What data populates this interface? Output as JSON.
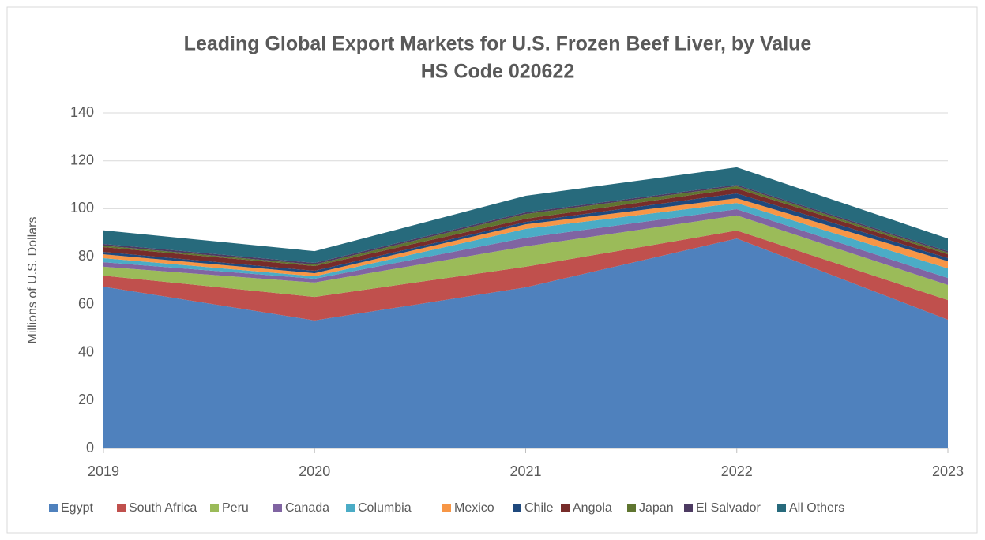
{
  "chart_data": {
    "type": "stacked-area",
    "title": "Leading Global Export Markets for U.S. Frozen Beef Liver, by Value",
    "subtitle": "HS Code 020622",
    "y_label": "Millions of U.S. Dollars",
    "categories": [
      "2019",
      "2020",
      "2021",
      "2022",
      "2023"
    ],
    "ylim": [
      0,
      140
    ],
    "yticks": [
      0,
      20,
      40,
      60,
      80,
      100,
      120,
      140
    ],
    "grid": true,
    "legend": "bottom",
    "series": [
      {
        "name": "Egypt",
        "color": "#4f81bd",
        "values": [
          67.5,
          53.4,
          67.2,
          87.6,
          53.7
        ]
      },
      {
        "name": "South Africa",
        "color": "#c0504d",
        "values": [
          4.6,
          9.8,
          8.6,
          3.3,
          8.2
        ]
      },
      {
        "name": "Peru",
        "color": "#9bbb59",
        "values": [
          3.7,
          6.0,
          8.5,
          6.3,
          6.3
        ]
      },
      {
        "name": "Canada",
        "color": "#8064a2",
        "values": [
          1.9,
          1.6,
          3.6,
          2.6,
          2.9
        ]
      },
      {
        "name": "Columbia",
        "color": "#4bacc6",
        "values": [
          1.7,
          1.0,
          3.7,
          2.6,
          4.0
        ]
      },
      {
        "name": "Mexico",
        "color": "#f79646",
        "values": [
          1.6,
          1.3,
          1.9,
          2.0,
          3.0
        ]
      },
      {
        "name": "Chile",
        "color": "#1f497d",
        "values": [
          1.0,
          1.0,
          1.0,
          2.0,
          1.3
        ]
      },
      {
        "name": "Angola",
        "color": "#772c2a",
        "values": [
          2.0,
          2.0,
          1.3,
          2.0,
          1.6
        ]
      },
      {
        "name": "Japan",
        "color": "#5f7530",
        "values": [
          0.6,
          0.6,
          2.0,
          1.0,
          0.7
        ]
      },
      {
        "name": "El Salvador",
        "color": "#4d3b62",
        "values": [
          0.7,
          0.7,
          0.7,
          0.6,
          0.6
        ]
      },
      {
        "name": "All Others",
        "color": "#276a7c",
        "values": [
          5.7,
          4.9,
          6.9,
          7.3,
          5.3
        ]
      }
    ]
  }
}
